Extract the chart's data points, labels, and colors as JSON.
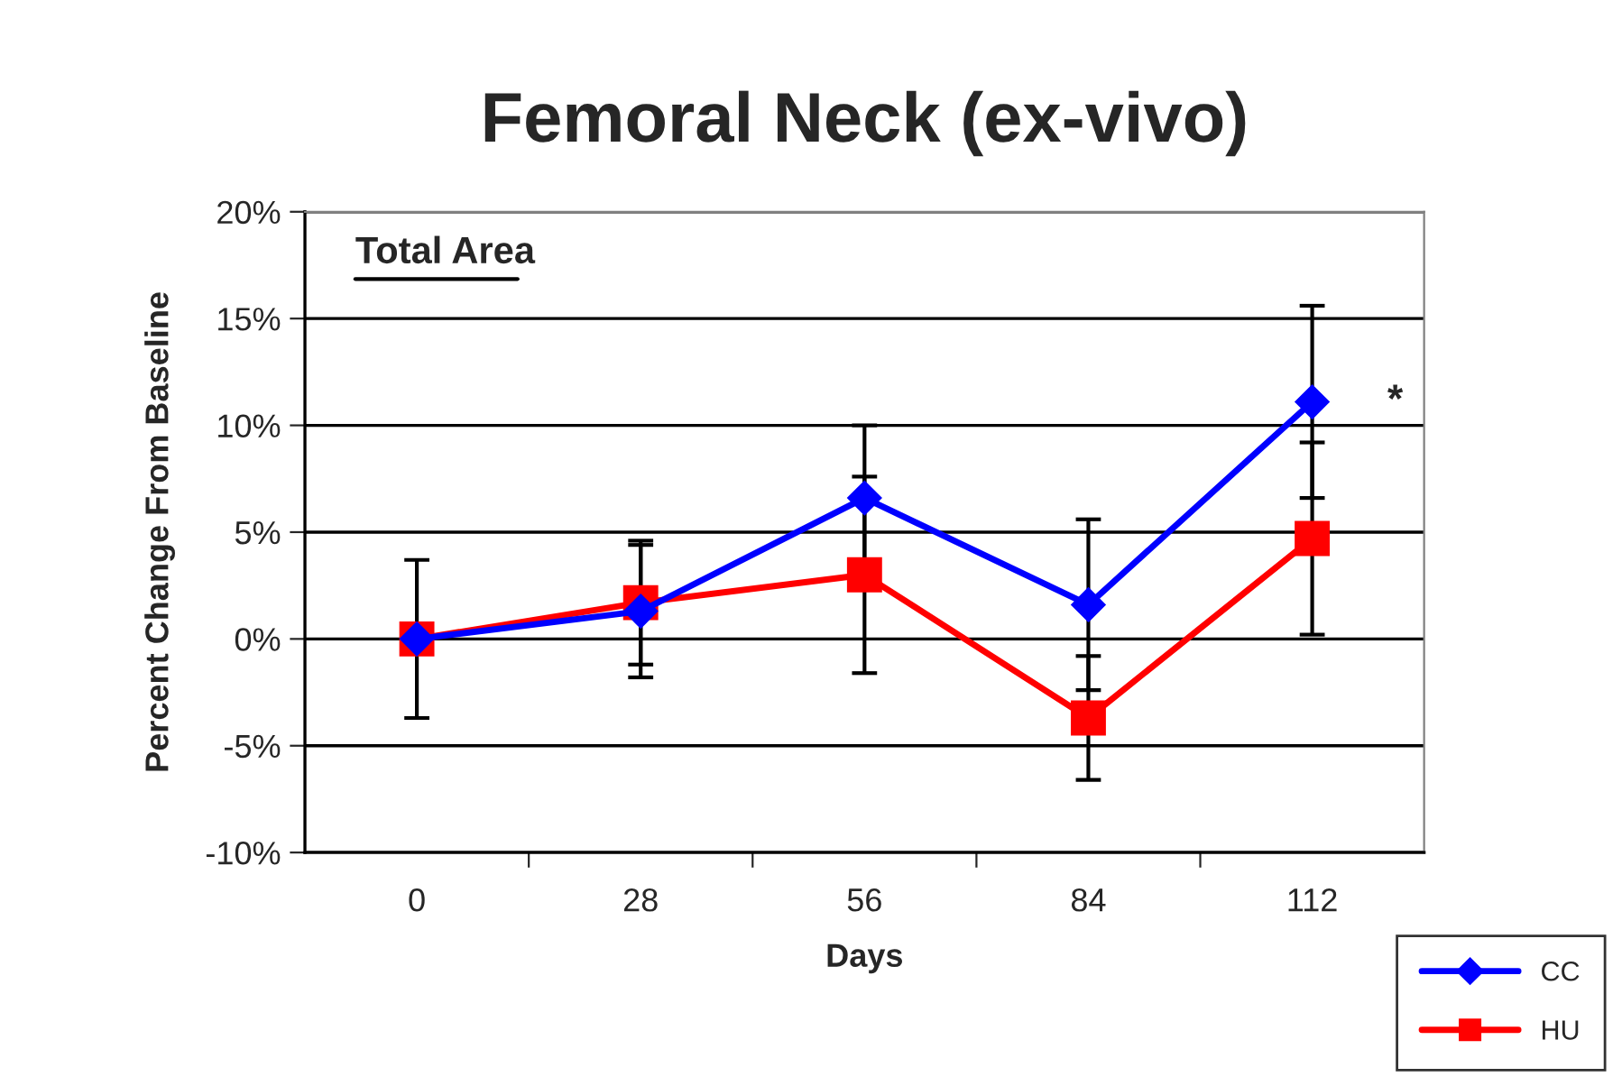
{
  "chart_data": {
    "type": "line",
    "title": "Femoral Neck (ex-vivo)",
    "xlabel": "Days",
    "ylabel": "Percent Change From Baseline",
    "categories": [
      "0",
      "28",
      "56",
      "84",
      "112"
    ],
    "series": [
      {
        "name": "CC",
        "color": "#0000ff",
        "marker": "diamond",
        "values": [
          0,
          1.3,
          6.6,
          1.6,
          11.1
        ],
        "errors": [
          null,
          3.1,
          3.4,
          4.0,
          4.5
        ]
      },
      {
        "name": "HU",
        "color": "#ff0000",
        "marker": "square",
        "values": [
          0,
          1.7,
          3.0,
          -3.7,
          4.7
        ],
        "errors": [
          3.7,
          2.9,
          4.6,
          2.9,
          4.5
        ]
      }
    ],
    "ylim": [
      -10,
      20
    ],
    "yticks": [
      {
        "value": -10,
        "label": "-10%"
      },
      {
        "value": -5,
        "label": "-5%"
      },
      {
        "value": 0,
        "label": "0%"
      },
      {
        "value": 5,
        "label": "5%"
      },
      {
        "value": 10,
        "label": "10%"
      },
      {
        "value": 15,
        "label": "15%"
      },
      {
        "value": 20,
        "label": "20%"
      }
    ],
    "grid": "y",
    "legend": "bottom right",
    "line_style": "solid",
    "annotations": [
      "Total Area",
      {
        "text": "*",
        "x": "112",
        "y": 11.1
      }
    ]
  }
}
